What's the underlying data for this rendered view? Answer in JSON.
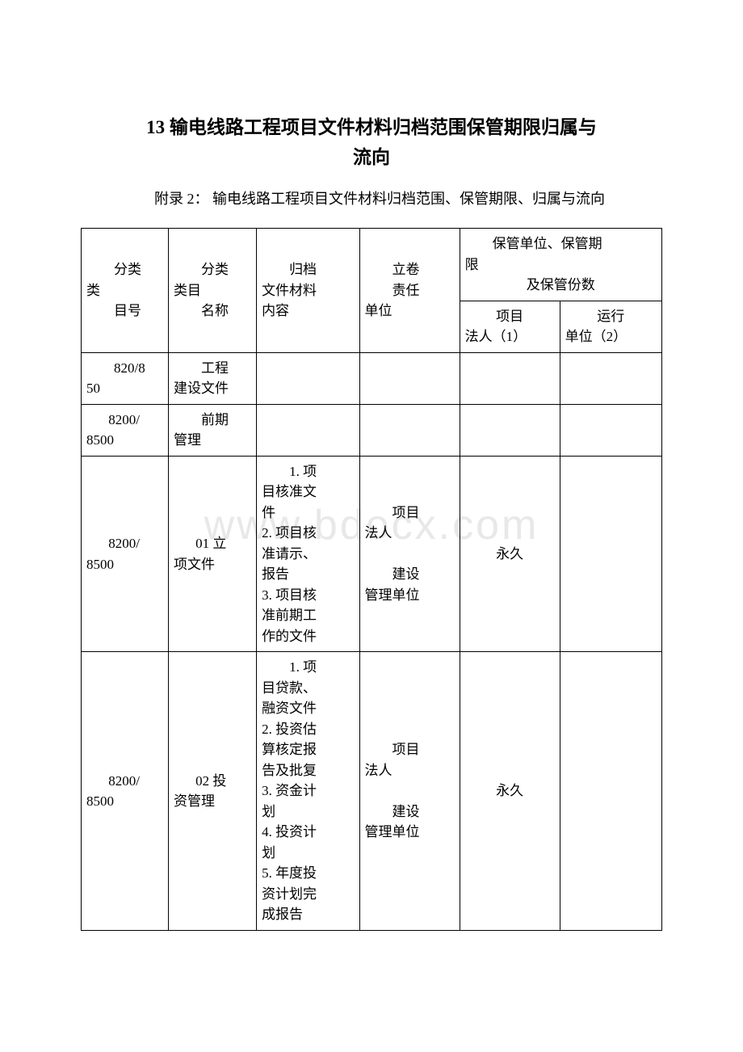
{
  "title_line1": "13 输电线路工程项目文件材料归档范围保管期限归属与",
  "title_line2": "流向",
  "subtitle": "附录 2： 输电线路工程项目文件材料归档范围、保管期限、归属与流向",
  "watermark_text": "www.bdocx.com",
  "header": {
    "col1_l1": "分类",
    "col1_l2": "类",
    "col1_l3": "目号",
    "col2_l1": "分类",
    "col2_l2": "类目",
    "col2_l3": "名称",
    "col3_l1": "归档",
    "col3_l2": "文件材料",
    "col3_l3": "内容",
    "col4_l1": "立卷",
    "col4_l2": "责任",
    "col4_l3": "单位",
    "col56_l1": "保管单位、保管期",
    "col56_l2": "限",
    "col56_l3": "及保管份数",
    "col5_sub_l1": "项目",
    "col5_sub_l2": "法人（1）",
    "col6_sub_l1": "运行",
    "col6_sub_l2": "单位（2）"
  },
  "rows": [
    {
      "c1": "820/850",
      "c2": "工程建设文件",
      "c3": "",
      "c4": "",
      "c5": "",
      "c6": ""
    },
    {
      "c1": "8200/8500",
      "c2": "前期管理",
      "c3": "",
      "c4": "",
      "c5": "",
      "c6": ""
    },
    {
      "c1": "8200/8500",
      "c2": "01 立项文件",
      "c3": "1. 项目核准文件\n2. 项目核准请示、报告\n3. 项目核准前期工作的文件",
      "c4": "项目法人\n\n建设管理单位",
      "c5": "永久",
      "c6": ""
    },
    {
      "c1": "8200/8500",
      "c2": "02 投资管理",
      "c3": "1. 项目贷款、融资文件\n2. 投资估算核定报告及批复\n3. 资金计划\n4. 投资计划\n5. 年度投资计划完成报告",
      "c4": "项目法人\n\n建设管理单位",
      "c5": "永久",
      "c6": ""
    }
  ],
  "colors": {
    "text": "#000000",
    "background": "#ffffff",
    "border": "#000000",
    "watermark": "rgba(190,190,190,0.35)"
  },
  "fonts": {
    "title_size": 23,
    "subtitle_size": 18,
    "body_size": 17
  }
}
